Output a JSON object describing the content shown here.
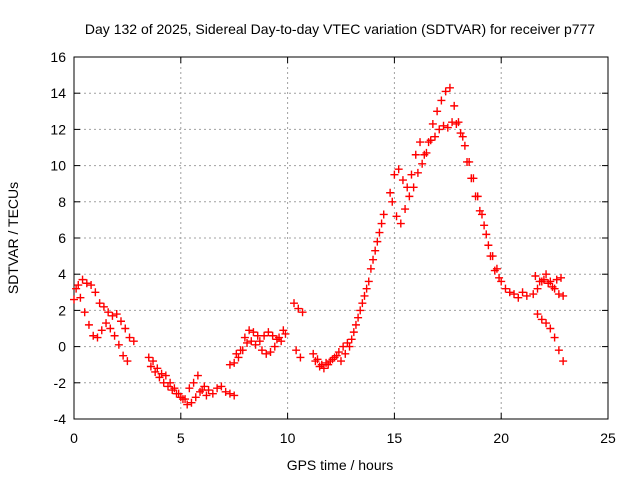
{
  "chart_data": {
    "type": "scatter",
    "title": "Day 132 of 2025, Sidereal Day-to-day VTEC variation (SDTVAR) for receiver p777",
    "xlabel": "GPS time / hours",
    "ylabel": "SDTVAR / TECUs",
    "xlim": [
      0,
      25
    ],
    "ylim": [
      -4,
      16
    ],
    "xticks": [
      0,
      5,
      10,
      15,
      20,
      25
    ],
    "yticks": [
      -4,
      -2,
      0,
      2,
      4,
      6,
      8,
      10,
      12,
      14,
      16
    ],
    "grid": true,
    "marker": "+",
    "marker_color": "#ff0000",
    "series": [
      {
        "name": "SDTVAR",
        "x": [
          0.0,
          0.2,
          0.4,
          0.6,
          0.8,
          1.0,
          1.2,
          1.4,
          1.6,
          1.8,
          2.0,
          2.2,
          2.4,
          2.6,
          2.8,
          0.1,
          0.3,
          0.5,
          0.7,
          0.9,
          1.1,
          1.3,
          1.5,
          1.7,
          1.9,
          2.1,
          2.3,
          2.5,
          3.5,
          3.7,
          3.9,
          4.1,
          4.3,
          4.5,
          4.7,
          4.9,
          5.1,
          5.3,
          5.5,
          5.7,
          5.9,
          6.1,
          6.3,
          6.5,
          6.7,
          6.9,
          7.1,
          7.3,
          7.5,
          3.6,
          3.8,
          4.0,
          4.2,
          4.4,
          4.6,
          4.8,
          5.0,
          5.2,
          5.4,
          5.6,
          5.8,
          6.0,
          6.2,
          7.3,
          7.5,
          7.7,
          7.9,
          8.1,
          8.3,
          8.5,
          8.7,
          8.9,
          9.1,
          9.3,
          9.5,
          9.7,
          9.9,
          7.6,
          7.8,
          8.0,
          8.2,
          8.4,
          8.6,
          8.8,
          9.0,
          9.2,
          9.4,
          9.6,
          9.8,
          10.3,
          10.5,
          10.7,
          10.4,
          10.6,
          11.2,
          11.4,
          11.6,
          11.8,
          12.0,
          12.2,
          12.4,
          12.6,
          12.8,
          13.0,
          11.3,
          11.5,
          11.7,
          11.9,
          12.1,
          12.3,
          12.5,
          12.7,
          12.9,
          13.1,
          13.3,
          13.5,
          13.7,
          13.9,
          14.1,
          14.3,
          14.5,
          13.2,
          13.4,
          13.6,
          13.8,
          14.0,
          14.2,
          14.4,
          14.8,
          15.0,
          15.2,
          15.4,
          15.6,
          15.8,
          16.0,
          16.2,
          16.4,
          16.6,
          16.8,
          17.0,
          17.2,
          17.4,
          17.6,
          17.8,
          18.0,
          18.2,
          18.4,
          18.6,
          18.8,
          19.0,
          19.2,
          19.4,
          19.6,
          19.8,
          20.0,
          20.2,
          20.4,
          14.9,
          15.1,
          15.3,
          15.5,
          15.7,
          15.9,
          16.1,
          16.3,
          16.5,
          16.7,
          16.9,
          17.1,
          17.3,
          17.5,
          17.7,
          17.9,
          18.1,
          18.3,
          18.5,
          18.7,
          18.9,
          19.1,
          19.3,
          19.5,
          19.7,
          19.9,
          20.6,
          20.8,
          21.0,
          21.2,
          21.5,
          21.7,
          21.9,
          22.1,
          22.3,
          22.5,
          22.7,
          22.9,
          21.6,
          21.8,
          22.0,
          22.2,
          22.4,
          22.6,
          22.8,
          21.7,
          21.9,
          22.1,
          22.3,
          22.5,
          22.7,
          22.9
        ],
        "y": [
          2.6,
          3.4,
          3.7,
          3.5,
          3.4,
          3.0,
          2.4,
          2.2,
          1.9,
          1.7,
          1.8,
          1.4,
          1.0,
          0.5,
          0.3,
          3.2,
          2.7,
          1.9,
          1.2,
          0.6,
          0.5,
          0.9,
          1.3,
          1.0,
          0.6,
          0.1,
          -0.5,
          -0.8,
          -0.6,
          -0.8,
          -1.2,
          -1.5,
          -1.6,
          -2.0,
          -2.3,
          -2.6,
          -2.9,
          -3.2,
          -3.1,
          -2.8,
          -2.5,
          -2.2,
          -2.4,
          -2.6,
          -2.3,
          -2.2,
          -2.5,
          -2.6,
          -2.7,
          -1.1,
          -1.4,
          -1.7,
          -2.0,
          -2.2,
          -2.4,
          -2.6,
          -2.8,
          -2.9,
          -2.3,
          -2.0,
          -1.6,
          -2.4,
          -2.7,
          -1.0,
          -0.9,
          -0.6,
          -0.2,
          0.2,
          0.3,
          0.1,
          0.3,
          0.6,
          0.8,
          0.6,
          0.4,
          0.3,
          0.7,
          -0.4,
          -0.2,
          0.5,
          0.9,
          0.8,
          0.6,
          -0.2,
          -0.4,
          -0.3,
          0.0,
          0.5,
          0.9,
          2.4,
          2.1,
          1.9,
          -0.2,
          -0.6,
          -0.4,
          -0.7,
          -1.0,
          -0.9,
          -0.8,
          -0.6,
          -0.3,
          0.0,
          0.2,
          0.4,
          -0.8,
          -1.1,
          -1.2,
          -1.0,
          -0.7,
          -0.5,
          -0.8,
          -0.4,
          0.0,
          0.8,
          1.6,
          2.4,
          3.2,
          4.3,
          5.3,
          6.3,
          7.3,
          1.2,
          2.0,
          2.8,
          3.6,
          4.8,
          5.8,
          6.8,
          8.5,
          9.5,
          9.8,
          9.2,
          8.8,
          9.5,
          10.6,
          11.3,
          10.6,
          11.3,
          12.3,
          13.0,
          13.6,
          14.1,
          14.3,
          13.3,
          12.4,
          11.6,
          10.2,
          9.3,
          8.3,
          7.5,
          6.7,
          5.6,
          5.0,
          4.3,
          3.6,
          3.2,
          3.0,
          8.0,
          7.2,
          6.8,
          7.6,
          8.3,
          8.8,
          9.6,
          10.1,
          10.7,
          11.4,
          11.6,
          12.0,
          12.2,
          12.1,
          12.4,
          12.3,
          11.8,
          11.1,
          10.2,
          9.3,
          8.3,
          7.3,
          6.2,
          5.0,
          4.2,
          3.8,
          2.9,
          2.7,
          3.0,
          2.8,
          2.9,
          3.2,
          3.6,
          4.0,
          3.6,
          3.2,
          2.9,
          2.8,
          3.9,
          3.6,
          3.7,
          3.5,
          3.3,
          3.7,
          3.8,
          1.8,
          1.5,
          1.3,
          1.0,
          0.5,
          -0.2,
          -0.8
        ]
      }
    ]
  }
}
